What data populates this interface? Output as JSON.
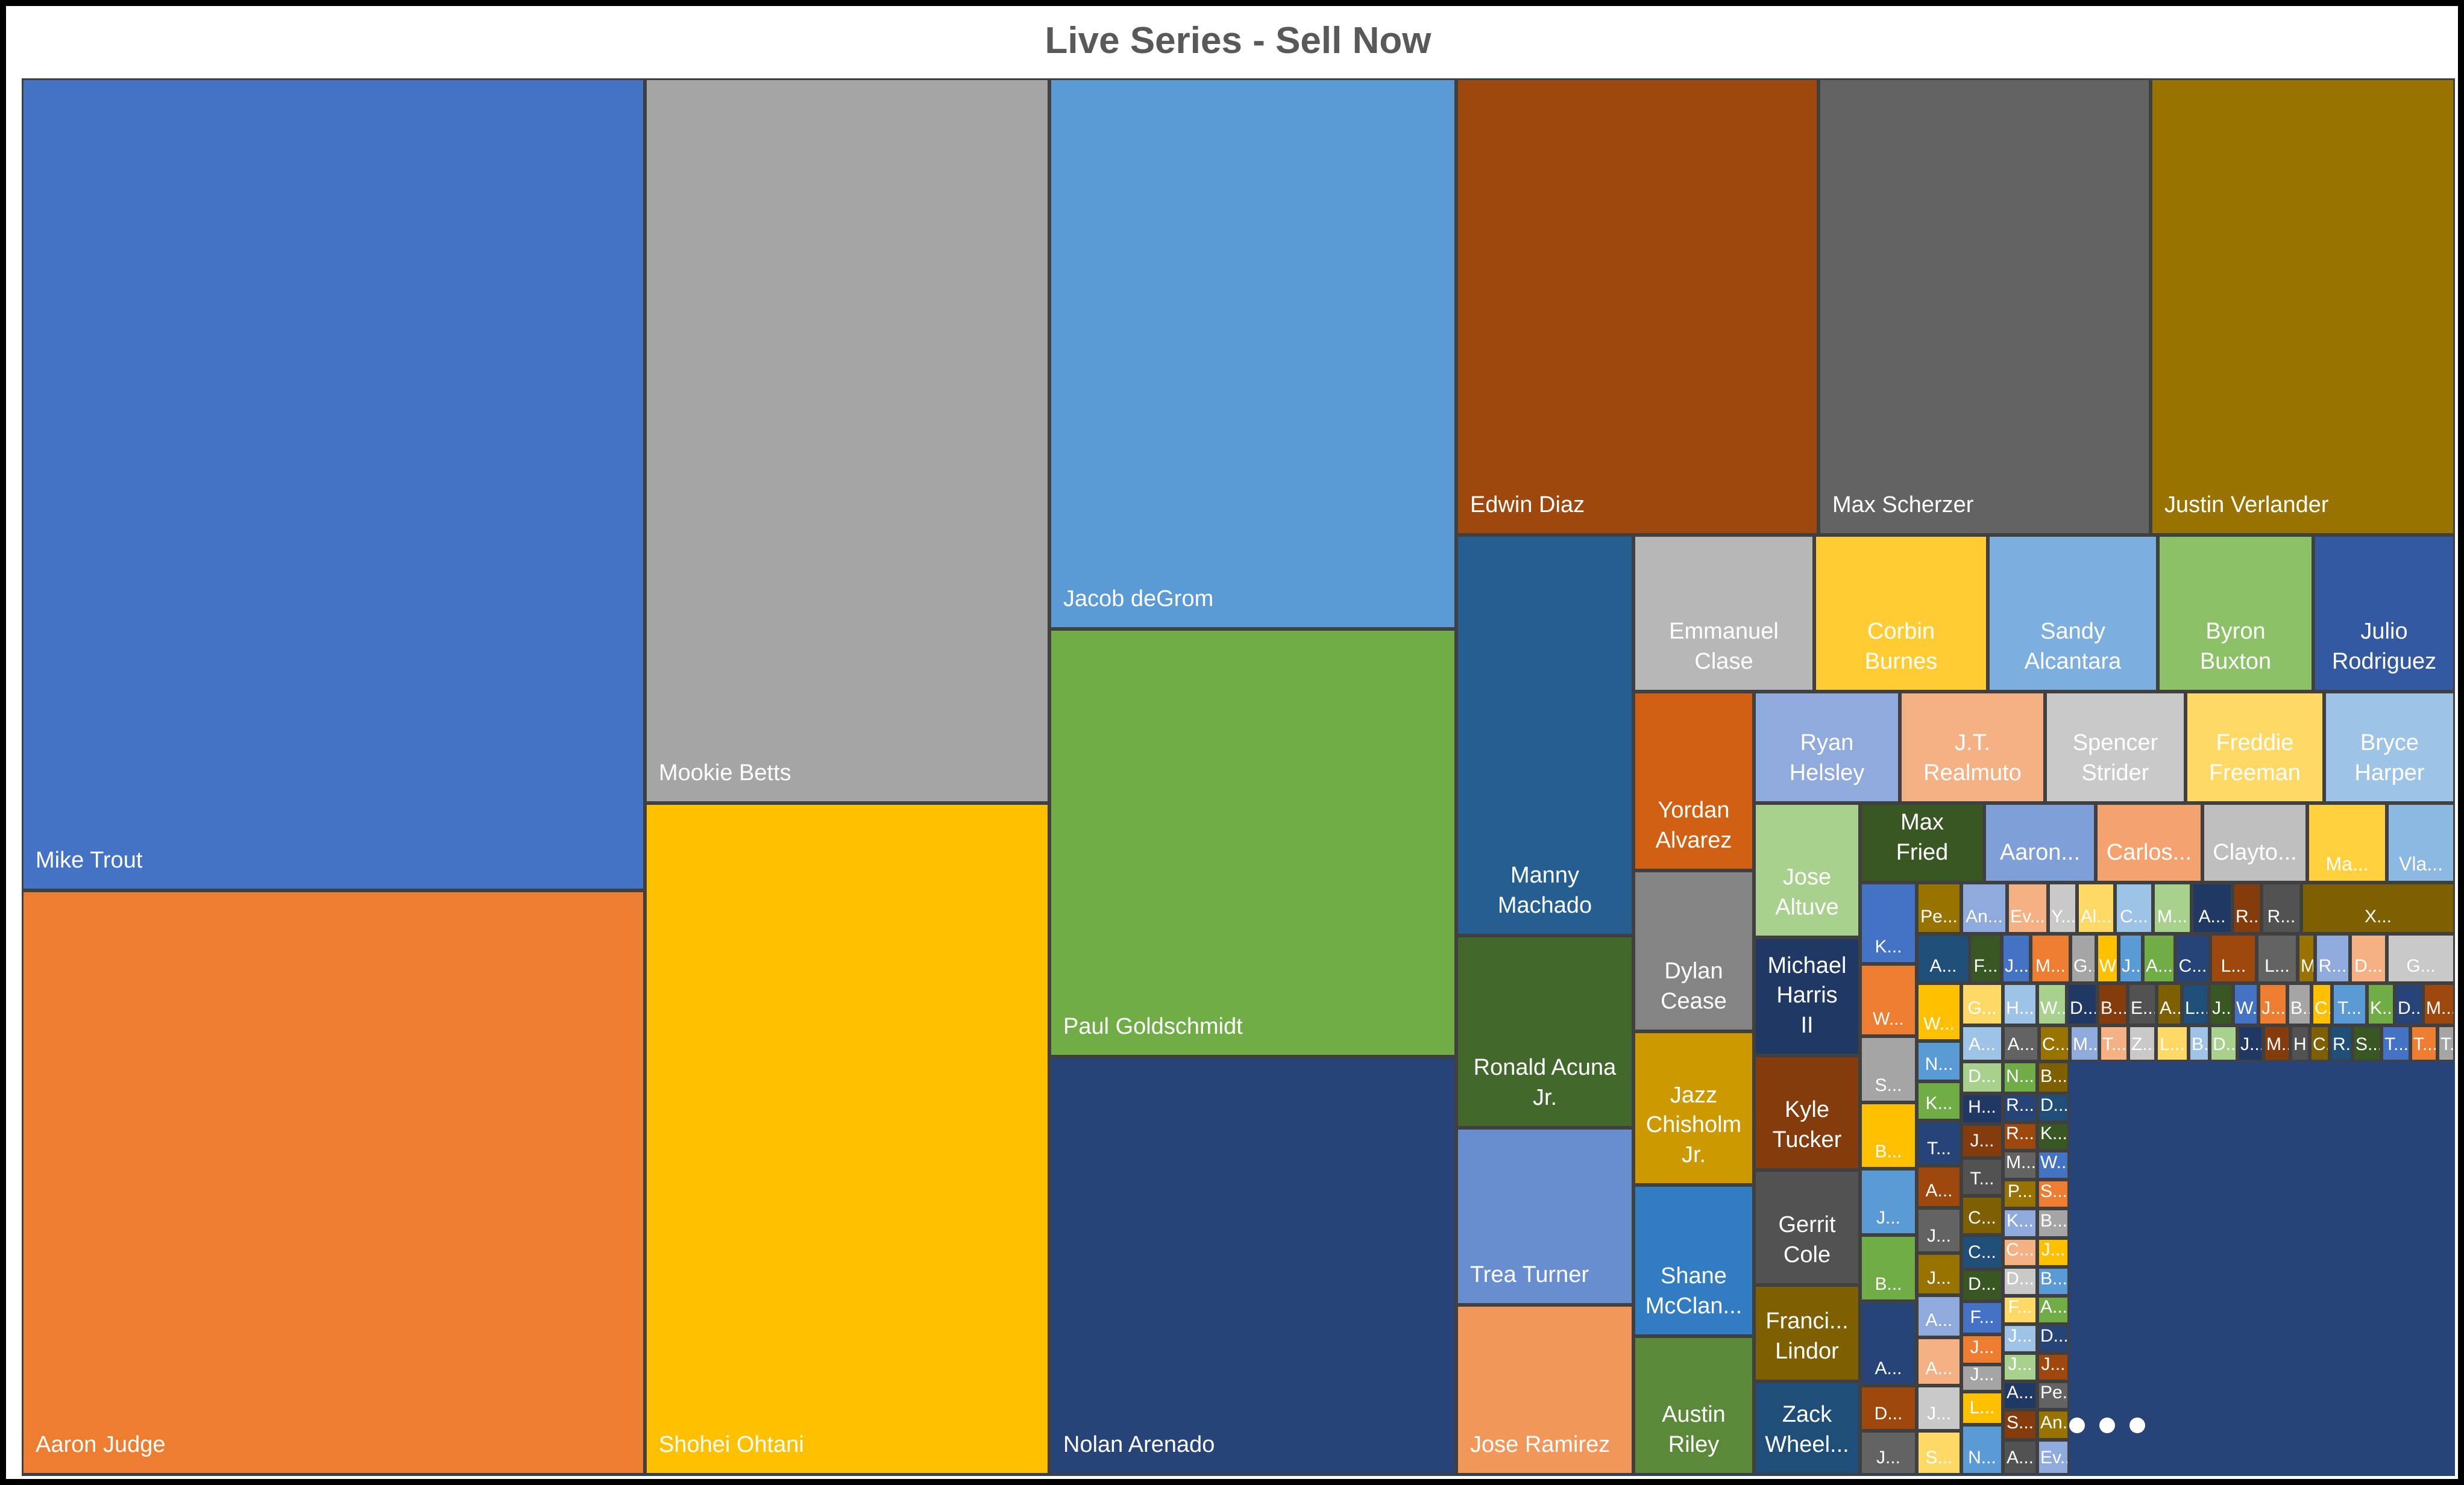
{
  "chart_data": {
    "type": "treemap",
    "title": "Live Series - Sell Now",
    "items": [
      {
        "name": "Mike Trout",
        "value": 1343,
        "color": "#4472c4"
      },
      {
        "name": "Aaron Judge",
        "value": 965,
        "color": "#ed7d31"
      },
      {
        "name": "Mookie Betts",
        "value": 786,
        "color": "#a5a5a5"
      },
      {
        "name": "Shohei Ohtani",
        "value": 727,
        "color": "#ffc000"
      },
      {
        "name": "Jacob deGrom",
        "value": 594,
        "color": "#5b9bd5"
      },
      {
        "name": "Paul Goldschmidt",
        "value": 468,
        "color": "#70ad47"
      },
      {
        "name": "Nolan Arenado",
        "value": 455,
        "color": "#264478"
      },
      {
        "name": "Edwin Diaz",
        "value": 420,
        "color": "#9e480e"
      },
      {
        "name": "Max Scherzer",
        "value": 385,
        "color": "#636363"
      },
      {
        "name": "Justin Verlander",
        "value": 351,
        "color": "#997300"
      },
      {
        "name": "Manny Machado",
        "value": 180,
        "color": "#255e91"
      },
      {
        "name": "Ronald Acuna Jr.",
        "value": 86,
        "color": "#43682b"
      },
      {
        "name": "Trea Turner",
        "value": 83,
        "color": "#698ed0"
      },
      {
        "name": "Jose Ramirez",
        "value": 73,
        "color": "#f1975a"
      },
      {
        "name": "Emmanuel Clase",
        "value": 77,
        "color": "#b7b7b7"
      },
      {
        "name": "Corbin Burnes",
        "value": 73,
        "color": "#ffcd33"
      },
      {
        "name": "Sandy Alcantara",
        "value": 72,
        "color": "#7cafdd"
      },
      {
        "name": "Byron Buxton",
        "value": 66,
        "color": "#8cc168"
      },
      {
        "name": "Julio Rodriguez",
        "value": 60,
        "color": "#335aa1"
      },
      {
        "name": "Yordan Alvarez",
        "value": 54,
        "color": "#d26012"
      },
      {
        "name": "Dylan Cease",
        "value": 53,
        "color": "#848484"
      },
      {
        "name": "Jazz Chisholm Jr.",
        "value": 50,
        "color": "#cc9a00"
      },
      {
        "name": "Shane McClan...",
        "value": 49,
        "color": "#327dc2"
      },
      {
        "name": "Austin Riley",
        "value": 44,
        "color": "#5a8a39"
      },
      {
        "name": "Ryan Helsley",
        "value": 43,
        "color": "#8faadc"
      },
      {
        "name": "J.T. Realmuto",
        "value": 41,
        "color": "#f4b183"
      },
      {
        "name": "Spencer Strider",
        "value": 38,
        "color": "#c9c9c9"
      },
      {
        "name": "Freddie Freeman",
        "value": 37,
        "color": "#ffd966"
      },
      {
        "name": "Bryce Harper",
        "value": 37,
        "color": "#9dc3e6"
      },
      {
        "name": "Jose Altuve",
        "value": 36,
        "color": "#a9d18e"
      },
      {
        "name": "Michael Harris II",
        "value": 31,
        "color": "#203864"
      },
      {
        "name": "Kyle Tucker",
        "value": 29,
        "color": "#843c0c"
      },
      {
        "name": "Gerrit Cole",
        "value": 28,
        "color": "#525252"
      },
      {
        "name": "Franci... Lindor",
        "value": 24,
        "color": "#7f6000"
      },
      {
        "name": "Zack Wheel...",
        "value": 23,
        "color": "#1f4e79"
      },
      {
        "name": "Max Fried",
        "value": 19,
        "color": "#385723"
      },
      {
        "name": "Aaron...",
        "value": 18,
        "color": "#7f9fd9"
      },
      {
        "name": "Carlos...",
        "value": 17,
        "color": "#f4a370"
      },
      {
        "name": "Clayto...",
        "value": 17,
        "color": "#bfbfbf"
      },
      {
        "name": "Ma...",
        "value": 13,
        "color": "#ffd13f"
      },
      {
        "name": "Vla...",
        "value": 11,
        "color": "#8cb9e2"
      }
    ],
    "small_labels": [
      "K...",
      "W...",
      "S...",
      "B...",
      "J...",
      "B...",
      "A...",
      "D...",
      "J...",
      "Pe...",
      "An...",
      "Ev...",
      "Y...",
      "Al...",
      "C...",
      "M...",
      "A...",
      "R...",
      "R...",
      "X...",
      "A...",
      "F...",
      "J...",
      "M...",
      "G...",
      "W...",
      "J...",
      "A...",
      "C...",
      "L...",
      "L...",
      "M...",
      "R...",
      "D...",
      "G...",
      "G...",
      "H...",
      "W...",
      "D...",
      "B...",
      "E...",
      "A...",
      "L...",
      "J...",
      "W...",
      "J...",
      "B...",
      "C...",
      "T...",
      "K...",
      "D...",
      "M...",
      "A...",
      "C...",
      "M...",
      "T...",
      "Z...",
      "L...",
      "B...",
      "D...",
      "J...",
      "M...",
      "H...",
      "C...",
      "R...",
      "S...",
      "T...",
      "T...",
      "T...",
      "W...",
      "N...",
      "K...",
      "T...",
      "A...",
      "J...",
      "J...",
      "A...",
      "A...",
      "J...",
      "S...",
      "A...",
      "D...",
      "H...",
      "J...",
      "T...",
      "C...",
      "C...",
      "D...",
      "F...",
      "J...",
      "J...",
      "L...",
      "N...",
      "N...",
      "R...",
      "R...",
      "M...",
      "P...",
      "K...",
      "C...",
      "D...",
      "F...",
      "J...",
      "J...",
      "A...",
      "S...",
      "A...",
      "B...",
      "D..."
    ],
    "overflow_indicator": "..."
  }
}
